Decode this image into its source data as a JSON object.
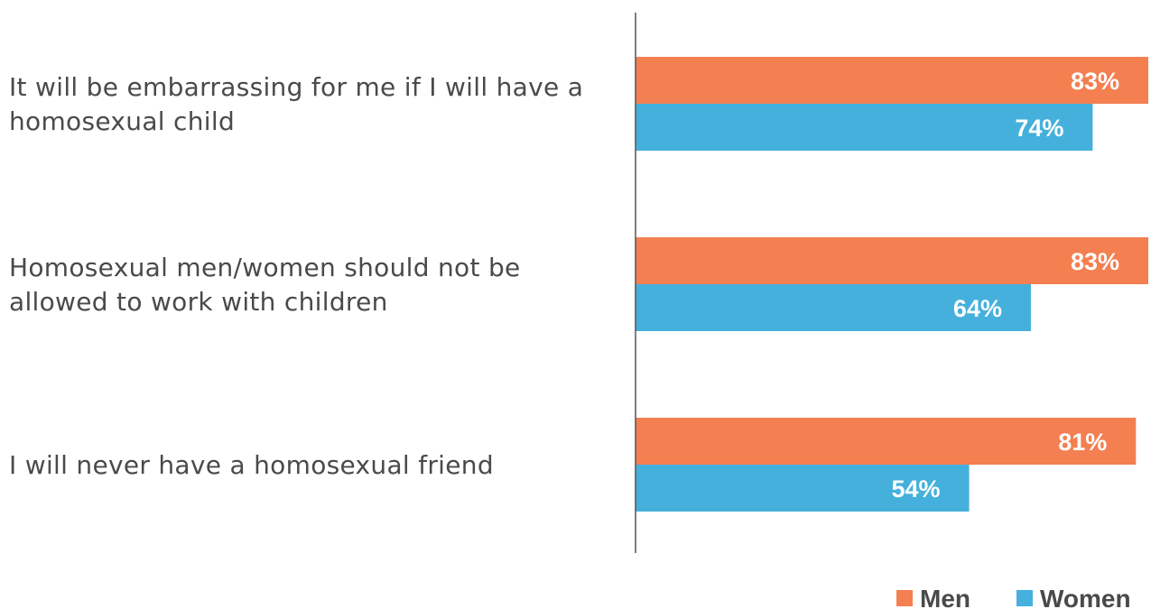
{
  "chart_data": {
    "type": "bar",
    "orientation": "horizontal",
    "title": "",
    "xlabel": "",
    "ylabel": "",
    "xlim": [
      0,
      100
    ],
    "grid": false,
    "legend_position": "bottom-right",
    "categories": [
      [
        "It will be embarrassing for me if I will have a",
        "homosexual child"
      ],
      [
        "Homosexual men/women should not be",
        "allowed to work with children"
      ],
      [
        "I will never have a homosexual friend"
      ]
    ],
    "series": [
      {
        "name": "Men",
        "color": "#f47f51",
        "values": [
          83,
          83,
          81
        ],
        "labels": [
          "83%",
          "83%",
          "81%"
        ]
      },
      {
        "name": "Women",
        "color": "#45b0dc",
        "values": [
          74,
          64,
          54
        ],
        "labels": [
          "74%",
          "64%",
          "54%"
        ]
      }
    ]
  }
}
